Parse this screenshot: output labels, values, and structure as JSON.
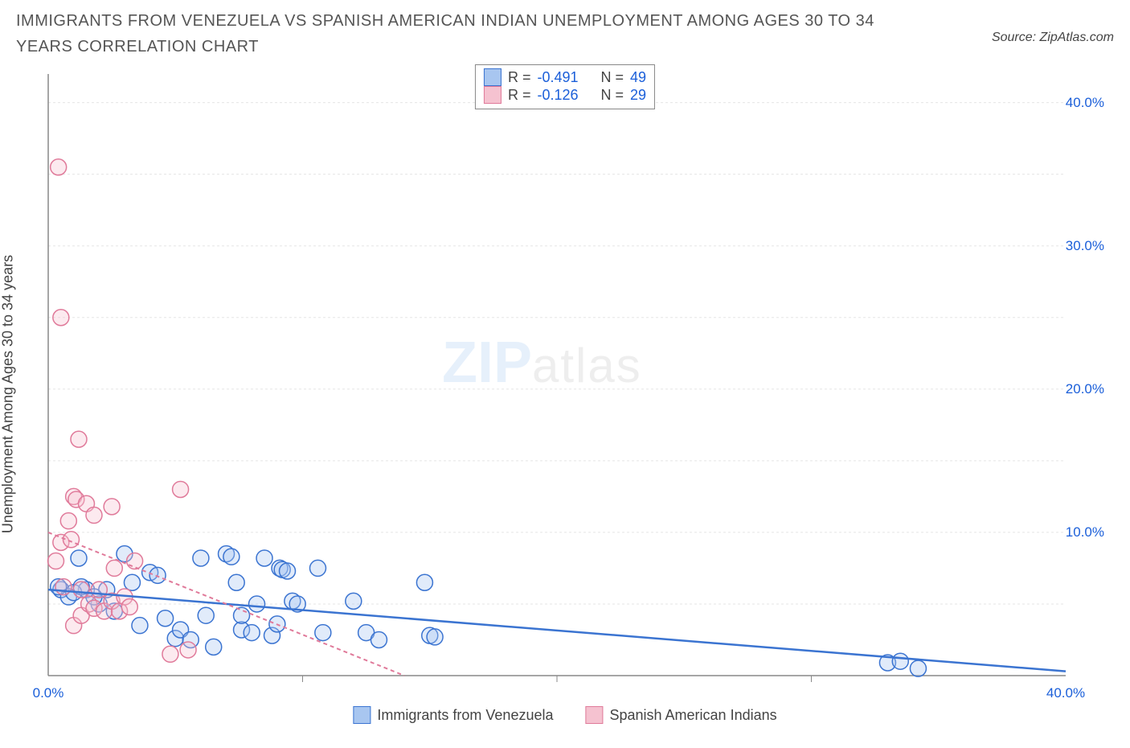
{
  "title": "IMMIGRANTS FROM VENEZUELA VS SPANISH AMERICAN INDIAN UNEMPLOYMENT AMONG AGES 30 TO 34 YEARS CORRELATION CHART",
  "source": "Source: ZipAtlas.com",
  "ylabel": "Unemployment Among Ages 30 to 34 years",
  "watermark_zip": "ZIP",
  "watermark_atlas": "atlas",
  "chart": {
    "type": "scatter",
    "background_color": "#ffffff",
    "grid_color": "#e5e5e5",
    "axis_color": "#888888",
    "tick_label_color": "#1b5fd9",
    "xlim": [
      0,
      40
    ],
    "ylim": [
      0,
      42
    ],
    "xtick_step": 10,
    "ytick_step": 10,
    "x_tick_labels": [
      "0.0%",
      "40.0%"
    ],
    "y_tick_labels": [
      "10.0%",
      "20.0%",
      "30.0%",
      "40.0%"
    ],
    "marker_radius": 10,
    "marker_fill_opacity": 0.35,
    "marker_stroke_width": 1.5,
    "series": [
      {
        "id": "venezuela",
        "label": "Immigrants from Venezuela",
        "color_fill": "#a8c6f0",
        "color_stroke": "#3b74d1",
        "R": "-0.491",
        "N": "49",
        "trend": {
          "x1": 0,
          "y1": 6.0,
          "x2": 40,
          "y2": 0.3,
          "stroke_width": 2.5,
          "dash": ""
        },
        "points": [
          {
            "x": 0.5,
            "y": 6.0
          },
          {
            "x": 0.8,
            "y": 5.5
          },
          {
            "x": 1.2,
            "y": 8.2
          },
          {
            "x": 1.5,
            "y": 6.0
          },
          {
            "x": 2.0,
            "y": 5.0
          },
          {
            "x": 2.3,
            "y": 6.0
          },
          {
            "x": 2.6,
            "y": 4.5
          },
          {
            "x": 3.0,
            "y": 8.5
          },
          {
            "x": 3.3,
            "y": 6.5
          },
          {
            "x": 3.6,
            "y": 3.5
          },
          {
            "x": 4.0,
            "y": 7.2
          },
          {
            "x": 4.3,
            "y": 7.0
          },
          {
            "x": 4.6,
            "y": 4.0
          },
          {
            "x": 5.0,
            "y": 2.6
          },
          {
            "x": 5.2,
            "y": 3.2
          },
          {
            "x": 5.6,
            "y": 2.5
          },
          {
            "x": 6.0,
            "y": 8.2
          },
          {
            "x": 6.2,
            "y": 4.2
          },
          {
            "x": 6.5,
            "y": 2.0
          },
          {
            "x": 7.0,
            "y": 8.5
          },
          {
            "x": 7.2,
            "y": 8.3
          },
          {
            "x": 7.4,
            "y": 6.5
          },
          {
            "x": 7.6,
            "y": 3.2
          },
          {
            "x": 7.6,
            "y": 4.2
          },
          {
            "x": 8.0,
            "y": 3.0
          },
          {
            "x": 8.2,
            "y": 5.0
          },
          {
            "x": 8.5,
            "y": 8.2
          },
          {
            "x": 8.8,
            "y": 2.8
          },
          {
            "x": 9.0,
            "y": 3.6
          },
          {
            "x": 9.1,
            "y": 7.5
          },
          {
            "x": 9.2,
            "y": 7.4
          },
          {
            "x": 9.4,
            "y": 7.3
          },
          {
            "x": 9.6,
            "y": 5.2
          },
          {
            "x": 9.8,
            "y": 5.0
          },
          {
            "x": 10.6,
            "y": 7.5
          },
          {
            "x": 10.8,
            "y": 3.0
          },
          {
            "x": 12.0,
            "y": 5.2
          },
          {
            "x": 12.5,
            "y": 3.0
          },
          {
            "x": 13.0,
            "y": 2.5
          },
          {
            "x": 14.8,
            "y": 6.5
          },
          {
            "x": 15.0,
            "y": 2.8
          },
          {
            "x": 15.2,
            "y": 2.7
          },
          {
            "x": 33.0,
            "y": 0.9
          },
          {
            "x": 33.5,
            "y": 1.0
          },
          {
            "x": 34.2,
            "y": 0.5
          },
          {
            "x": 1.0,
            "y": 5.8
          },
          {
            "x": 1.3,
            "y": 6.2
          },
          {
            "x": 1.8,
            "y": 5.5
          },
          {
            "x": 0.4,
            "y": 6.2
          }
        ]
      },
      {
        "id": "sai",
        "label": "Spanish American Indians",
        "color_fill": "#f5c2d0",
        "color_stroke": "#e07a9a",
        "R": "-0.126",
        "N": "29",
        "trend": {
          "x1": 0,
          "y1": 10.0,
          "x2": 14,
          "y2": 0,
          "stroke_width": 2,
          "dash": "5,4"
        },
        "points": [
          {
            "x": 0.3,
            "y": 8.0
          },
          {
            "x": 0.4,
            "y": 35.5
          },
          {
            "x": 0.5,
            "y": 9.3
          },
          {
            "x": 0.5,
            "y": 25.0
          },
          {
            "x": 0.6,
            "y": 6.2
          },
          {
            "x": 0.8,
            "y": 10.8
          },
          {
            "x": 0.9,
            "y": 9.5
          },
          {
            "x": 1.0,
            "y": 12.5
          },
          {
            "x": 1.0,
            "y": 3.5
          },
          {
            "x": 1.1,
            "y": 12.3
          },
          {
            "x": 1.2,
            "y": 16.5
          },
          {
            "x": 1.3,
            "y": 4.2
          },
          {
            "x": 1.3,
            "y": 6.0
          },
          {
            "x": 1.5,
            "y": 12.0
          },
          {
            "x": 1.6,
            "y": 5.0
          },
          {
            "x": 1.8,
            "y": 4.7
          },
          {
            "x": 1.8,
            "y": 11.2
          },
          {
            "x": 2.0,
            "y": 6.0
          },
          {
            "x": 2.2,
            "y": 4.5
          },
          {
            "x": 2.5,
            "y": 5.2
          },
          {
            "x": 2.5,
            "y": 11.8
          },
          {
            "x": 2.6,
            "y": 7.5
          },
          {
            "x": 2.8,
            "y": 4.5
          },
          {
            "x": 3.0,
            "y": 5.5
          },
          {
            "x": 3.2,
            "y": 4.8
          },
          {
            "x": 3.4,
            "y": 8.0
          },
          {
            "x": 4.8,
            "y": 1.5
          },
          {
            "x": 5.5,
            "y": 1.8
          },
          {
            "x": 5.2,
            "y": 13.0
          }
        ]
      }
    ]
  },
  "legend_bottom": [
    {
      "label": "Immigrants from Venezuela",
      "fill": "#a8c6f0",
      "stroke": "#3b74d1"
    },
    {
      "label": "Spanish American Indians",
      "fill": "#f5c2d0",
      "stroke": "#e07a9a"
    }
  ],
  "legend_top_prefix_R": "R = ",
  "legend_top_prefix_N": "N = "
}
